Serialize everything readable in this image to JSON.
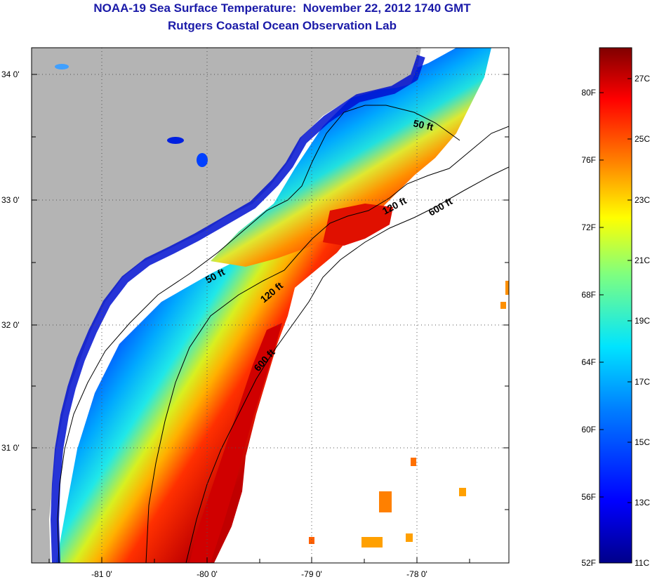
{
  "header": {
    "title": "NOAA-19 Sea Surface Temperature:  November 22, 2012 1740 GMT",
    "subtitle": "Rutgers Coastal Ocean Observation Lab"
  },
  "map": {
    "lat_labels": [
      "34 0'",
      "33 0'",
      "32 0'",
      "31 0'"
    ],
    "lon_labels": [
      "-81 0'",
      "-80 0'",
      "-79 0'",
      "-78 0'"
    ],
    "depth_contour_labels": [
      "50 ft",
      "120 ft",
      "600 ft",
      "50 ft",
      "120 ft",
      "600 ft"
    ],
    "colors": {
      "land": "#b4b4b4",
      "no_data": "#ffffff",
      "grid": "#555555"
    }
  },
  "colorbar": {
    "fahrenheit_labels": [
      "80F",
      "76F",
      "72F",
      "68F",
      "64F",
      "60F",
      "56F",
      "52F"
    ],
    "celsius_labels": [
      "27C",
      "25C",
      "23C",
      "21C",
      "19C",
      "17C",
      "15C",
      "13C",
      "11C"
    ],
    "stops": [
      "#00008a",
      "#0000ff",
      "#0080ff",
      "#00e4ff",
      "#7fff7f",
      "#ffff00",
      "#ff8000",
      "#ff0000",
      "#800000"
    ]
  }
}
